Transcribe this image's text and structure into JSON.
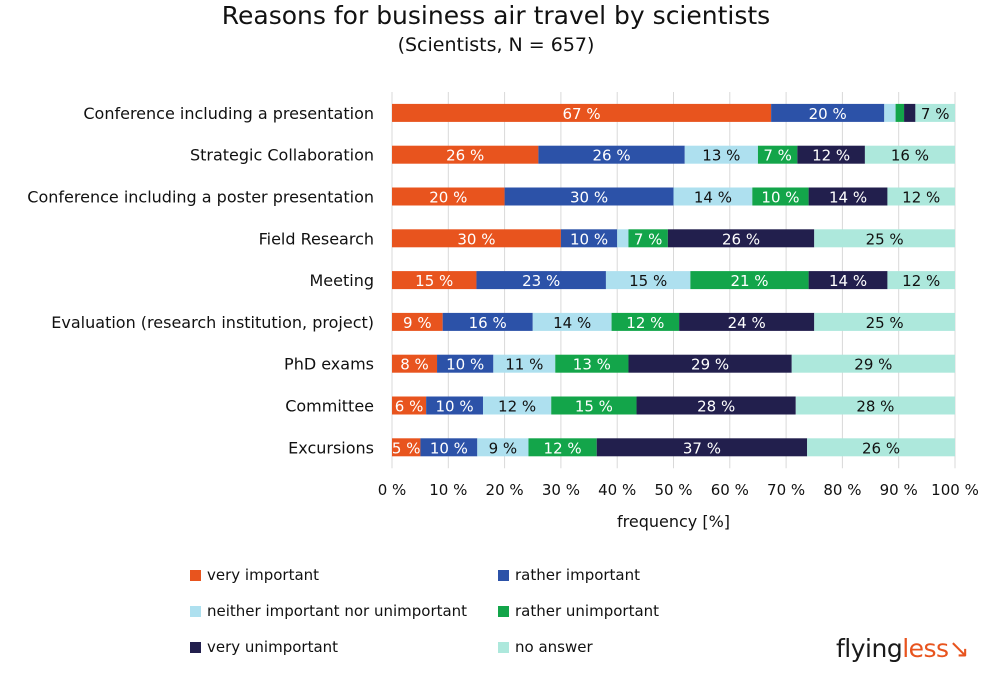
{
  "chart_data": {
    "type": "bar",
    "orientation": "horizontal-stacked-100",
    "title": "Reasons for business air travel by scientists",
    "subtitle": "(Scientists, N = 657)",
    "xlabel": "frequency [%]",
    "ylabel": "",
    "xlim": [
      0,
      100
    ],
    "xticks": [
      "0 %",
      "10 %",
      "20 %",
      "30 %",
      "40 %",
      "50 %",
      "60 %",
      "70 %",
      "80 %",
      "90 %",
      "100 %"
    ],
    "grid": true,
    "legend_position": "bottom",
    "categories": [
      "Conference including a presentation",
      "Strategic Collaboration",
      "Conference including a poster presentation",
      "Field Research",
      "Meeting",
      "Evaluation (research institution, project)",
      "PhD exams",
      "Committee",
      "Excursions"
    ],
    "series": [
      {
        "name": "very important",
        "color": "#e8541e",
        "label_color": "#ffffff",
        "values": [
          67,
          26,
          20,
          30,
          15,
          9,
          8,
          6,
          5
        ]
      },
      {
        "name": "rather important",
        "color": "#2c52a8",
        "label_color": "#ffffff",
        "values": [
          20,
          26,
          30,
          10,
          23,
          16,
          10,
          10,
          10
        ]
      },
      {
        "name": "neither important nor unimportant",
        "color": "#aee0ef",
        "label_color": "#111111",
        "values": [
          2,
          13,
          14,
          2,
          15,
          14,
          11,
          12,
          9
        ]
      },
      {
        "name": "rather unimportant",
        "color": "#13a54a",
        "label_color": "#ffffff",
        "values": [
          1.5,
          7,
          10,
          7,
          21,
          12,
          13,
          15,
          12
        ]
      },
      {
        "name": "very unimportant",
        "color": "#221f4d",
        "label_color": "#ffffff",
        "values": [
          2,
          12,
          14,
          26,
          14,
          24,
          29,
          28,
          37
        ]
      },
      {
        "name": "no answer",
        "color": "#ade8dc",
        "label_color": "#111111",
        "values": [
          7,
          16,
          12,
          25,
          12,
          25,
          29,
          28,
          26
        ]
      }
    ]
  },
  "logo": {
    "part1": "flying",
    "part2": "less"
  }
}
